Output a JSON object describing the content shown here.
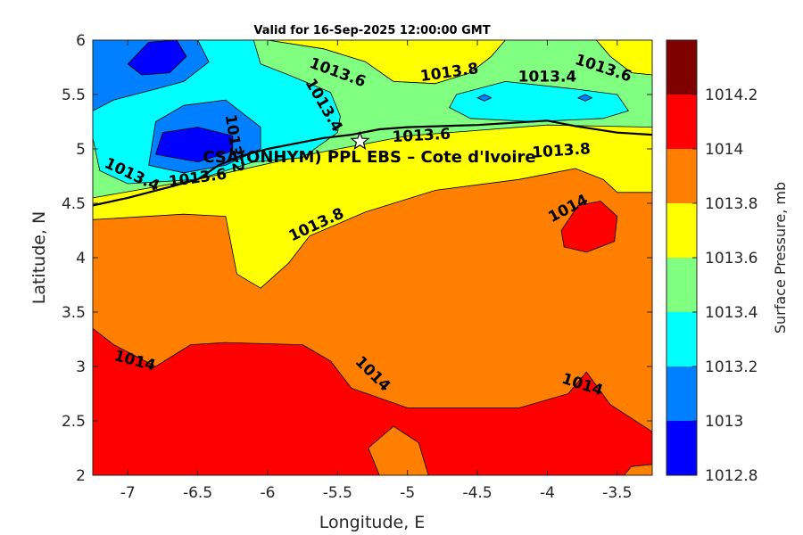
{
  "chart_data": {
    "type": "contour",
    "title": "Valid for 16-Sep-2025 12:00:00 GMT",
    "xlabel": "Longitude, E",
    "ylabel": "Latitude, N",
    "xlim": [
      -7.25,
      -3.25
    ],
    "ylim": [
      2,
      6
    ],
    "x_ticks": [
      -7,
      -6.5,
      -6,
      -5.5,
      -5,
      -4.5,
      -4,
      -3.5
    ],
    "y_ticks": [
      2,
      2.5,
      3,
      3.5,
      4,
      4.5,
      5,
      5.5,
      6
    ],
    "colorbar": {
      "label": "Surface Pressure, mb",
      "levels": [
        1012.8,
        1013,
        1013.2,
        1013.4,
        1013.6,
        1013.8,
        1014,
        1014.2
      ],
      "colors": [
        "#0000ff",
        "#0080ff",
        "#00ffff",
        "#80ff80",
        "#ffff00",
        "#ff8000",
        "#ff0000",
        "#800000"
      ]
    },
    "regions": [
      {
        "level": 1014,
        "color": "#ff0000",
        "polygon": [
          [
            -7.25,
            2
          ],
          [
            -3.25,
            2
          ],
          [
            -3.25,
            2.4
          ],
          [
            -3.55,
            2.65
          ],
          [
            -3.72,
            2.95
          ],
          [
            -3.85,
            2.75
          ],
          [
            -4.2,
            2.62
          ],
          [
            -5,
            2.62
          ],
          [
            -5.4,
            2.8
          ],
          [
            -5.55,
            3.05
          ],
          [
            -5.75,
            3.2
          ],
          [
            -6.3,
            3.22
          ],
          [
            -6.55,
            3.2
          ],
          [
            -6.8,
            3
          ],
          [
            -7.1,
            3.2
          ],
          [
            -7.25,
            3.35
          ]
        ]
      },
      {
        "level": 1014,
        "color": "#ff0000",
        "polygon": [
          [
            -3.9,
            4.25
          ],
          [
            -3.78,
            4.48
          ],
          [
            -3.62,
            4.52
          ],
          [
            -3.5,
            4.38
          ],
          [
            -3.52,
            4.15
          ],
          [
            -3.72,
            4.05
          ],
          [
            -3.88,
            4.1
          ]
        ]
      },
      {
        "level": 1013.8,
        "color": "#ff8000",
        "polygon": [
          [
            -5.2,
            2
          ],
          [
            -4.85,
            2
          ],
          [
            -4.92,
            2.3
          ],
          [
            -5.1,
            2.45
          ],
          [
            -5.28,
            2.25
          ]
        ]
      },
      {
        "level": 1013.8,
        "color": "#ff8000",
        "polygon": [
          [
            -3.45,
            2
          ],
          [
            -3.25,
            2
          ],
          [
            -3.25,
            2.1
          ],
          [
            -3.4,
            2.08
          ]
        ]
      },
      {
        "level": 1013.6,
        "color": "#ffff00",
        "polygon": [
          [
            -7.25,
            4.35
          ],
          [
            -6.6,
            4.4
          ],
          [
            -6.3,
            4.38
          ],
          [
            -6.22,
            3.85
          ],
          [
            -6.05,
            3.72
          ],
          [
            -5.85,
            3.95
          ],
          [
            -5.7,
            4.2
          ],
          [
            -5.3,
            4.42
          ],
          [
            -4.8,
            4.62
          ],
          [
            -4.2,
            4.72
          ],
          [
            -3.8,
            4.82
          ],
          [
            -3.6,
            4.72
          ],
          [
            -3.5,
            4.6
          ],
          [
            -3.25,
            4.6
          ],
          [
            -3.25,
            5.2
          ],
          [
            -4.5,
            5.35
          ],
          [
            -5.5,
            5.3
          ],
          [
            -6.5,
            5
          ],
          [
            -7.25,
            4.78
          ]
        ]
      },
      {
        "level": 1013.6,
        "color": "#ffff00",
        "polygon": [
          [
            -6,
            6
          ],
          [
            -5.6,
            5.92
          ],
          [
            -5.3,
            5.8
          ],
          [
            -5.1,
            5.62
          ],
          [
            -4.8,
            5.6
          ],
          [
            -4.55,
            5.7
          ],
          [
            -4.4,
            5.85
          ],
          [
            -4.3,
            6
          ]
        ]
      },
      {
        "level": 1013.6,
        "color": "#ffff00",
        "polygon": [
          [
            -3.65,
            6
          ],
          [
            -3.55,
            5.85
          ],
          [
            -3.4,
            5.7
          ],
          [
            -3.25,
            5.68
          ],
          [
            -3.25,
            6
          ]
        ]
      },
      {
        "level": 1013.4,
        "color": "#80ff80",
        "polygon": [
          [
            -7.25,
            4.85
          ],
          [
            -7.25,
            6
          ],
          [
            -6,
            6
          ],
          [
            -5.6,
            5.92
          ],
          [
            -5.3,
            5.8
          ],
          [
            -5.1,
            5.62
          ],
          [
            -4.8,
            5.6
          ],
          [
            -4.55,
            5.7
          ],
          [
            -4.4,
            5.85
          ],
          [
            -4.3,
            6
          ],
          [
            -3.65,
            6
          ],
          [
            -3.55,
            5.85
          ],
          [
            -3.4,
            5.7
          ],
          [
            -3.25,
            5.68
          ],
          [
            -3.25,
            5.2
          ],
          [
            -4,
            5.22
          ],
          [
            -5,
            5.12
          ],
          [
            -5.7,
            4.95
          ],
          [
            -6.5,
            4.72
          ],
          [
            -7.25,
            4.55
          ]
        ]
      },
      {
        "level": 1013.2,
        "color": "#00ffff",
        "polygon": [
          [
            -7.25,
            5.1
          ],
          [
            -7.25,
            6
          ],
          [
            -6.1,
            6
          ],
          [
            -6.05,
            5.78
          ],
          [
            -5.85,
            5.68
          ],
          [
            -5.55,
            5.52
          ],
          [
            -5.48,
            5.3
          ],
          [
            -5.5,
            5.15
          ],
          [
            -5.75,
            4.92
          ],
          [
            -6.1,
            4.88
          ],
          [
            -6.5,
            4.72
          ],
          [
            -7,
            4.68
          ],
          [
            -7.2,
            4.8
          ]
        ]
      },
      {
        "level": 1013.2,
        "color": "#00ffff",
        "polygon": [
          [
            -4.65,
            5.5
          ],
          [
            -4.3,
            5.62
          ],
          [
            -3.8,
            5.55
          ],
          [
            -3.5,
            5.5
          ],
          [
            -3.42,
            5.35
          ],
          [
            -3.6,
            5.28
          ],
          [
            -4.1,
            5.25
          ],
          [
            -4.55,
            5.28
          ],
          [
            -4.7,
            5.38
          ]
        ]
      },
      {
        "level": 1013,
        "color": "#0080ff",
        "polygon": [
          [
            -7.25,
            5.35
          ],
          [
            -7.25,
            6
          ],
          [
            -6.5,
            6
          ],
          [
            -6.42,
            5.8
          ],
          [
            -6.6,
            5.62
          ],
          [
            -6.8,
            5.55
          ],
          [
            -7.1,
            5.45
          ]
        ]
      },
      {
        "level": 1013,
        "color": "#0080ff",
        "polygon": [
          [
            -6.85,
            4.85
          ],
          [
            -6.8,
            5.25
          ],
          [
            -6.6,
            5.4
          ],
          [
            -6.3,
            5.45
          ],
          [
            -6.05,
            5.2
          ],
          [
            -6.05,
            5.0
          ],
          [
            -6.3,
            4.85
          ],
          [
            -6.6,
            4.78
          ]
        ]
      },
      {
        "level": 1013,
        "color": "#0080ff",
        "polygon": [
          [
            -4.5,
            5.47
          ],
          [
            -4.45,
            5.5
          ],
          [
            -4.4,
            5.47
          ],
          [
            -4.45,
            5.44
          ]
        ]
      },
      {
        "level": 1013,
        "color": "#0080ff",
        "polygon": [
          [
            -3.78,
            5.47
          ],
          [
            -3.73,
            5.5
          ],
          [
            -3.68,
            5.47
          ],
          [
            -3.73,
            5.44
          ]
        ]
      },
      {
        "level": 1012.8,
        "color": "#0000ff",
        "polygon": [
          [
            -7.0,
            5.78
          ],
          [
            -6.85,
            5.98
          ],
          [
            -6.65,
            6
          ],
          [
            -6.58,
            5.85
          ],
          [
            -6.7,
            5.7
          ],
          [
            -6.9,
            5.68
          ]
        ]
      },
      {
        "level": 1012.8,
        "color": "#0000ff",
        "polygon": [
          [
            -6.8,
            4.95
          ],
          [
            -6.75,
            5.15
          ],
          [
            -6.5,
            5.2
          ],
          [
            -6.25,
            5.12
          ],
          [
            -6.25,
            4.98
          ],
          [
            -6.5,
            4.88
          ]
        ]
      }
    ],
    "contour_labels": [
      {
        "text": "1013.6",
        "x": -5.5,
        "y": 5.7,
        "angle": 20
      },
      {
        "text": "1013.8",
        "x": -4.7,
        "y": 5.7,
        "angle": -8
      },
      {
        "text": "1013.4",
        "x": -4.0,
        "y": 5.66,
        "angle": 0
      },
      {
        "text": "1013.6",
        "x": -3.6,
        "y": 5.74,
        "angle": 18
      },
      {
        "text": "1013.4",
        "x": -5.6,
        "y": 5.4,
        "angle": 60
      },
      {
        "text": "1013.6",
        "x": -4.9,
        "y": 5.12,
        "angle": -3
      },
      {
        "text": "1013.8",
        "x": -3.9,
        "y": 4.98,
        "angle": -4
      },
      {
        "text": "1013.4",
        "x": -6.97,
        "y": 4.76,
        "angle": 25
      },
      {
        "text": "1013.6",
        "x": -6.5,
        "y": 4.73,
        "angle": -8
      },
      {
        "text": "1013.2",
        "x": -6.24,
        "y": 5.05,
        "angle": 82
      },
      {
        "text": "1013.8",
        "x": -5.65,
        "y": 4.3,
        "angle": -25
      },
      {
        "text": "1014",
        "x": -3.85,
        "y": 4.45,
        "angle": -28
      },
      {
        "text": "1014",
        "x": -6.95,
        "y": 3.05,
        "angle": 15
      },
      {
        "text": "1014",
        "x": -5.25,
        "y": 2.93,
        "angle": 45
      },
      {
        "text": "1014",
        "x": -3.75,
        "y": 2.83,
        "angle": 18
      }
    ],
    "coastline": [
      [
        -7.25,
        4.48
      ],
      [
        -7,
        4.55
      ],
      [
        -6.7,
        4.65
      ],
      [
        -6.5,
        4.72
      ],
      [
        -6.35,
        4.85
      ],
      [
        -6.2,
        4.93
      ],
      [
        -6,
        5.0
      ],
      [
        -5.8,
        5.05
      ],
      [
        -5.6,
        5.1
      ],
      [
        -5.4,
        5.13
      ],
      [
        -5.2,
        5.18
      ],
      [
        -5,
        5.2
      ],
      [
        -4.5,
        5.22
      ],
      [
        -4,
        5.26
      ],
      [
        -3.8,
        5.21
      ],
      [
        -3.5,
        5.15
      ],
      [
        -3.25,
        5.13
      ]
    ],
    "site": {
      "label": "CSA(ONHYM) PPL EBS  – Cote d'Ivoire",
      "x": -5.34,
      "y": 5.07
    }
  }
}
